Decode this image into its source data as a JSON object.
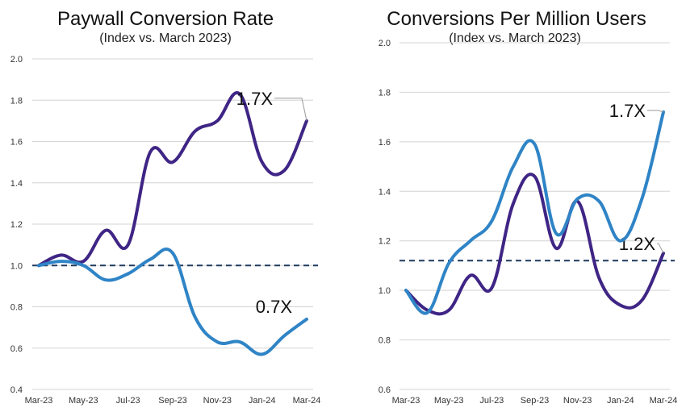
{
  "colors": {
    "purple": "#3f2585",
    "blue": "#2f84c6"
  },
  "chart_data": [
    {
      "type": "line",
      "title": "Paywall Conversion Rate",
      "subtitle": "(Index vs. March 2023)",
      "x": [
        "Mar-23",
        "Apr-23",
        "May-23",
        "Jun-23",
        "Jul-23",
        "Aug-23",
        "Sep-23",
        "Oct-23",
        "Nov-23",
        "Dec-23",
        "Jan-24",
        "Feb-24",
        "Mar-24"
      ],
      "x_tick_labels": [
        "Mar-23",
        "May-23",
        "Jul-23",
        "Sep-23",
        "Nov-23",
        "Jan-24",
        "Mar-24"
      ],
      "y_ticks": [
        "0.4",
        "0.6",
        "0.8",
        "1.0",
        "1.2",
        "1.4",
        "1.6",
        "1.8",
        "2.0"
      ],
      "ylim": [
        0.4,
        2.0
      ],
      "grid": true,
      "reference_line": 1.0,
      "series": [
        {
          "color": "purple",
          "values": [
            1.0,
            1.05,
            1.02,
            1.17,
            1.1,
            1.55,
            1.5,
            1.65,
            1.7,
            1.83,
            1.5,
            1.46,
            1.7
          ],
          "annotation": "1.7X"
        },
        {
          "color": "blue",
          "values": [
            1.0,
            1.02,
            1.0,
            0.93,
            0.96,
            1.03,
            1.06,
            0.75,
            0.63,
            0.63,
            0.57,
            0.66,
            0.74
          ],
          "annotation": "0.7X"
        }
      ]
    },
    {
      "type": "line",
      "title": "Conversions Per Million Users",
      "subtitle": "(Index vs. March 2023)",
      "x": [
        "Mar-23",
        "Apr-23",
        "May-23",
        "Jun-23",
        "Jul-23",
        "Aug-23",
        "Sep-23",
        "Oct-23",
        "Nov-23",
        "Dec-23",
        "Jan-24",
        "Feb-24",
        "Mar-24"
      ],
      "x_tick_labels": [
        "Mar-23",
        "May-23",
        "Jul-23",
        "Sep-23",
        "Nov-23",
        "Jan-24",
        "Mar-24"
      ],
      "y_ticks": [
        "0.6",
        "0.8",
        "1.0",
        "1.2",
        "1.4",
        "1.6",
        "1.8",
        "2.0"
      ],
      "ylim": [
        0.6,
        2.0
      ],
      "grid": true,
      "reference_line": 1.12,
      "series": [
        {
          "color": "purple",
          "values": [
            1.0,
            0.92,
            0.92,
            1.06,
            1.01,
            1.35,
            1.46,
            1.17,
            1.36,
            1.05,
            0.94,
            0.96,
            1.15
          ],
          "annotation": "1.2X"
        },
        {
          "color": "blue",
          "values": [
            1.0,
            0.91,
            1.11,
            1.2,
            1.28,
            1.5,
            1.59,
            1.23,
            1.37,
            1.36,
            1.2,
            1.37,
            1.72
          ],
          "annotation": "1.7X"
        }
      ]
    }
  ]
}
